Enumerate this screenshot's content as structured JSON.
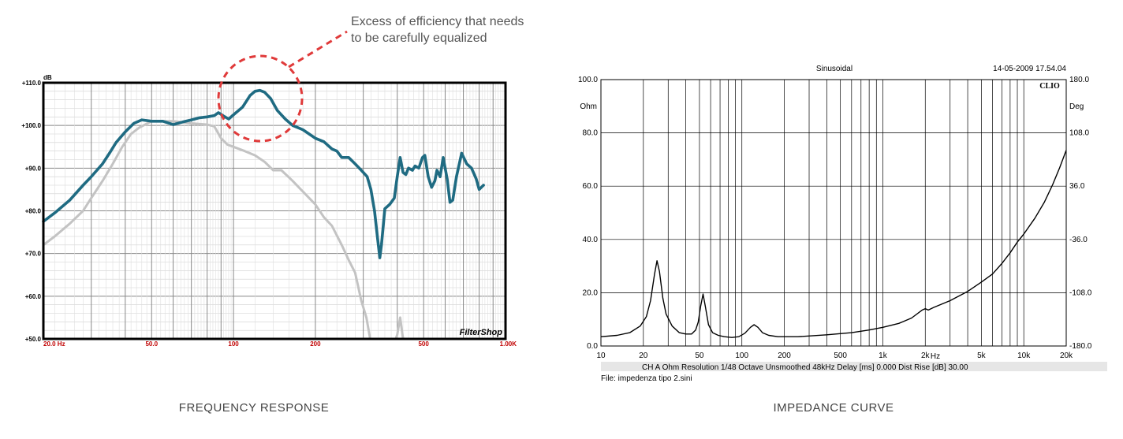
{
  "annotation": {
    "line1": "Excess of efficiency that needs",
    "line2": "to be carefully equalized"
  },
  "captions": {
    "left": "FREQUENCY RESPONSE",
    "right": "IMPEDANCE CURVE"
  },
  "colors": {
    "fr_main": "#1f6b82",
    "fr_secondary": "#c3c3c3",
    "annotation_red": "#e03a3a",
    "impedance": "#000000"
  },
  "chart_data": [
    {
      "type": "line",
      "title": "",
      "ylabel": "dB",
      "brand": "FilterShop",
      "x_scale": "log",
      "xlim": [
        20,
        1000
      ],
      "ylim": [
        50,
        110
      ],
      "grid": true,
      "y_ticks": [
        {
          "v": 110,
          "label": "+110.0"
        },
        {
          "v": 100,
          "label": "+100.0"
        },
        {
          "v": 90,
          "label": "+90.0"
        },
        {
          "v": 80,
          "label": "+80.0"
        },
        {
          "v": 70,
          "label": "+70.0"
        },
        {
          "v": 60,
          "label": "+60.0"
        },
        {
          "v": 50,
          "label": "+50.0"
        }
      ],
      "x_ticks": [
        {
          "v": 20,
          "label": "20.0 Hz"
        },
        {
          "v": 50,
          "label": "50.0"
        },
        {
          "v": 100,
          "label": "100"
        },
        {
          "v": 200,
          "label": "200"
        },
        {
          "v": 500,
          "label": "500"
        },
        {
          "v": 1000,
          "label": "1.00K"
        }
      ],
      "series": [
        {
          "points": [
            [
              20,
              77.5
            ],
            [
              22,
              79.5
            ],
            [
              25,
              82.5
            ],
            [
              28,
              86
            ],
            [
              30,
              88
            ],
            [
              33,
              91
            ],
            [
              35,
              93.5
            ],
            [
              37,
              96
            ],
            [
              40,
              98.5
            ],
            [
              43,
              100.5
            ],
            [
              46,
              101.3
            ],
            [
              50,
              101
            ],
            [
              55,
              101
            ],
            [
              60,
              100.2
            ],
            [
              65,
              100.8
            ],
            [
              70,
              101.3
            ],
            [
              75,
              101.8
            ],
            [
              80,
              102
            ],
            [
              85,
              102.3
            ],
            [
              88,
              103
            ],
            [
              92,
              102.2
            ],
            [
              96,
              101.5
            ],
            [
              100,
              102.5
            ],
            [
              108,
              104.3
            ],
            [
              115,
              107
            ],
            [
              120,
              108
            ],
            [
              125,
              108.2
            ],
            [
              130,
              107.8
            ],
            [
              137,
              106.3
            ],
            [
              145,
              103.5
            ],
            [
              155,
              101.5
            ],
            [
              165,
              100
            ],
            [
              180,
              99
            ],
            [
              200,
              97
            ],
            [
              215,
              96.2
            ],
            [
              230,
              94.5
            ],
            [
              240,
              94
            ],
            [
              250,
              92.5
            ],
            [
              265,
              92.5
            ],
            [
              280,
              91
            ],
            [
              295,
              89.5
            ],
            [
              310,
              88
            ],
            [
              320,
              85
            ],
            [
              330,
              80
            ],
            [
              338,
              74
            ],
            [
              345,
              69
            ],
            [
              350,
              72
            ],
            [
              360,
              80.5
            ],
            [
              375,
              81.5
            ],
            [
              390,
              83
            ],
            [
              400,
              88
            ],
            [
              410,
              92.5
            ],
            [
              420,
              89
            ],
            [
              430,
              88.5
            ],
            [
              440,
              90
            ],
            [
              455,
              89.5
            ],
            [
              465,
              90.5
            ],
            [
              480,
              90
            ],
            [
              495,
              92.5
            ],
            [
              505,
              93
            ],
            [
              520,
              88
            ],
            [
              535,
              85.5
            ],
            [
              550,
              87
            ],
            [
              560,
              89.5
            ],
            [
              575,
              88
            ],
            [
              590,
              92.5
            ],
            [
              610,
              87.5
            ],
            [
              625,
              82
            ],
            [
              640,
              82.5
            ],
            [
              660,
              88
            ],
            [
              690,
              93.5
            ],
            [
              720,
              91
            ],
            [
              750,
              90
            ],
            [
              780,
              87.5
            ],
            [
              800,
              85
            ],
            [
              830,
              86
            ]
          ]
        },
        {
          "points": [
            [
              20,
              72
            ],
            [
              22,
              74
            ],
            [
              25,
              77
            ],
            [
              28,
              80
            ],
            [
              30,
              83
            ],
            [
              33,
              87
            ],
            [
              36,
              91
            ],
            [
              39,
              95
            ],
            [
              42,
              98
            ],
            [
              45,
              99.5
            ],
            [
              50,
              101
            ],
            [
              60,
              101
            ],
            [
              70,
              100.5
            ],
            [
              80,
              100.2
            ],
            [
              85,
              99.8
            ],
            [
              90,
              97
            ],
            [
              95,
              95.5
            ],
            [
              100,
              95
            ],
            [
              110,
              94
            ],
            [
              120,
              93
            ],
            [
              130,
              91.5
            ],
            [
              140,
              89.5
            ],
            [
              150,
              89.5
            ],
            [
              165,
              87
            ],
            [
              180,
              84.5
            ],
            [
              200,
              81.5
            ],
            [
              215,
              78.5
            ],
            [
              230,
              76.5
            ],
            [
              250,
              72
            ],
            [
              265,
              68.5
            ],
            [
              280,
              65.5
            ],
            [
              295,
              59
            ],
            [
              308,
              55
            ],
            [
              318,
              50
            ],
            [
              395,
              50
            ],
            [
              400,
              51
            ],
            [
              410,
              55
            ],
            [
              420,
              50
            ],
            [
              1000,
              50
            ]
          ]
        }
      ]
    },
    {
      "type": "line",
      "title": "Sinusoidal",
      "date": "14-05-2009 17.54.04",
      "brand": "CLIO",
      "ylabel": "Ohm",
      "y2label": "Deg",
      "xlabel": "Hz",
      "x_scale": "log",
      "xlim": [
        10,
        20000
      ],
      "ylim": [
        0,
        100
      ],
      "y2lim": [
        -180,
        180
      ],
      "grid": true,
      "y_ticks": [
        "100.0",
        "80.0",
        "60.0",
        "40.0",
        "20.0",
        "0.0"
      ],
      "y2_ticks": [
        "180.0",
        "108.0",
        "36.0",
        "-36.0",
        "-108.0",
        "-180.0"
      ],
      "x_ticks": [
        {
          "v": 10,
          "label": "10"
        },
        {
          "v": 20,
          "label": "20"
        },
        {
          "v": 50,
          "label": "50"
        },
        {
          "v": 100,
          "label": "100"
        },
        {
          "v": 200,
          "label": "200"
        },
        {
          "v": 500,
          "label": "500"
        },
        {
          "v": 1000,
          "label": "1k"
        },
        {
          "v": 2000,
          "label": "2k"
        },
        {
          "v": 5000,
          "label": "5k"
        },
        {
          "v": 10000,
          "label": "10k"
        },
        {
          "v": 20000,
          "label": "20k"
        }
      ],
      "status_line": "CH A   Ohm   Resolution 1/48 Octave   Unsmoothed   48kHz   Delay [ms] 0.000   Dist Rise [dB] 30.00",
      "file_line": "File: impedenza tipo 2.sini",
      "series": [
        {
          "points": [
            [
              10,
              3.5
            ],
            [
              13,
              4
            ],
            [
              16,
              5
            ],
            [
              19,
              7.5
            ],
            [
              21,
              11
            ],
            [
              22.5,
              17
            ],
            [
              24,
              27
            ],
            [
              25,
              32
            ],
            [
              26,
              28
            ],
            [
              27.5,
              18
            ],
            [
              29,
              12
            ],
            [
              32,
              7.5
            ],
            [
              36,
              5
            ],
            [
              40,
              4.5
            ],
            [
              44,
              4.5
            ],
            [
              47,
              6
            ],
            [
              49,
              9
            ],
            [
              51,
              15
            ],
            [
              53,
              19.5
            ],
            [
              55,
              15
            ],
            [
              58,
              8
            ],
            [
              62,
              5
            ],
            [
              68,
              4
            ],
            [
              75,
              3.5
            ],
            [
              85,
              3.2
            ],
            [
              95,
              3.5
            ],
            [
              105,
              4.8
            ],
            [
              115,
              7
            ],
            [
              122,
              8
            ],
            [
              130,
              7
            ],
            [
              140,
              5
            ],
            [
              155,
              4
            ],
            [
              180,
              3.5
            ],
            [
              250,
              3.5
            ],
            [
              400,
              4.2
            ],
            [
              600,
              5
            ],
            [
              800,
              6
            ],
            [
              1000,
              7
            ],
            [
              1300,
              8.5
            ],
            [
              1600,
              10.5
            ],
            [
              1900,
              13.5
            ],
            [
              2000,
              14
            ],
            [
              2100,
              13.5
            ],
            [
              2300,
              14.5
            ],
            [
              3000,
              17
            ],
            [
              4000,
              20.5
            ],
            [
              5000,
              24
            ],
            [
              6000,
              27
            ],
            [
              7000,
              31
            ],
            [
              8000,
              35
            ],
            [
              9000,
              39
            ],
            [
              10000,
              42
            ],
            [
              12000,
              48
            ],
            [
              14000,
              54
            ],
            [
              16000,
              60.5
            ],
            [
              18000,
              67
            ],
            [
              20000,
              73.5
            ]
          ]
        }
      ]
    }
  ]
}
